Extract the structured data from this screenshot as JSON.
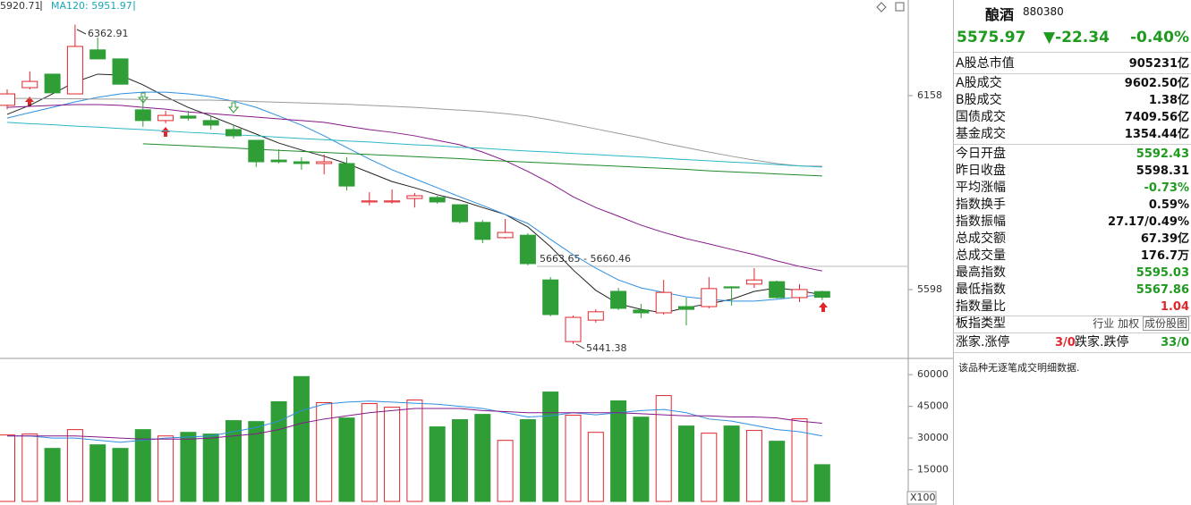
{
  "chart_data": [
    {
      "type": "candlestick",
      "legend_texts": [
        "5920.71",
        "MA120: 5951.97"
      ],
      "legend_colors": [
        "#333333",
        "#1aa6b4"
      ],
      "up_color": "#e0262d",
      "down_color": "#2f9e37",
      "ylim": [
        5402,
        6434
      ],
      "yticks": [
        5598,
        6158
      ],
      "open": [
        6130,
        6181,
        6220,
        6163,
        6290,
        6264,
        6117,
        6086,
        6099,
        6086,
        6060,
        6029,
        5972,
        5967,
        5962,
        5962,
        5851,
        5851,
        5861,
        5864,
        5843,
        5792,
        5748,
        5755,
        5626,
        5448,
        5510,
        5593,
        5539,
        5531,
        5549,
        5549,
        5606,
        5614,
        5621,
        5575,
        5592.43
      ],
      "high": [
        6176,
        6228,
        6220,
        6362.91,
        6326,
        6264,
        6158,
        6114,
        6114,
        6099,
        6073,
        6029,
        6003,
        5980,
        5988,
        5980,
        5879,
        5887,
        5877,
        5869,
        5843,
        5799,
        5802,
        5761,
        5634,
        5523,
        5541,
        5603,
        5557,
        5626,
        5575,
        5634,
        5608,
        5660,
        5624,
        5614,
        5595.03
      ],
      "low": [
        6119,
        6176,
        6166,
        6163,
        6264,
        6191,
        6068,
        6078,
        6086,
        6060,
        6034,
        5952,
        5962,
        5944,
        5931,
        5884,
        5841,
        5846,
        5835,
        5846,
        5789,
        5732,
        5745,
        5668,
        5521,
        5441.38,
        5503,
        5539,
        5516,
        5526,
        5495,
        5544,
        5552,
        5603,
        5572,
        5562,
        5567.86
      ],
      "close": [
        6163,
        6199,
        6166,
        6300,
        6264,
        6191,
        6086,
        6101,
        6093,
        6073,
        6042,
        5967,
        5967,
        5962,
        5967,
        5897,
        5854,
        5854,
        5869,
        5851,
        5794,
        5743,
        5763,
        5673,
        5526,
        5518,
        5534,
        5544,
        5531,
        5590,
        5541,
        5601,
        5603,
        5626,
        5575,
        5598.31,
        5575.97
      ],
      "series": [
        {
          "color": "#222222",
          "values": [
            6104,
            6130,
            6163,
            6197,
            6220,
            6217,
            6189,
            6155,
            6124,
            6099,
            6073,
            6047,
            6021,
            6001,
            5983,
            5962,
            5936,
            5910,
            5892,
            5872,
            5856,
            5835,
            5815,
            5779,
            5722,
            5655,
            5596,
            5557,
            5541,
            5531,
            5546,
            5557,
            5570,
            5593,
            5603,
            5595,
            5583
          ]
        },
        {
          "color": "#2f8fe0",
          "values": [
            6093,
            6109,
            6124,
            6140,
            6153,
            6163,
            6168,
            6168,
            6163,
            6155,
            6142,
            6124,
            6099,
            6073,
            6042,
            6008,
            5975,
            5944,
            5918,
            5892,
            5866,
            5841,
            5815,
            5789,
            5743,
            5699,
            5660,
            5626,
            5603,
            5590,
            5577,
            5570,
            5565,
            5565,
            5570,
            5577,
            5583
          ]
        },
        {
          "color": "#86198a",
          "values": [
            6124,
            6127,
            6130,
            6132,
            6132,
            6130,
            6124,
            6119,
            6111,
            6106,
            6101,
            6096,
            6091,
            6086,
            6081,
            6070,
            6060,
            6052,
            6042,
            6029,
            6016,
            5995,
            5970,
            5939,
            5905,
            5866,
            5835,
            5810,
            5784,
            5763,
            5745,
            5730,
            5714,
            5699,
            5681,
            5665,
            5652
          ]
        },
        {
          "color": "#1f8a2a",
          "values": [
            null,
            null,
            null,
            null,
            null,
            null,
            6019,
            6016,
            6013,
            6010,
            6007,
            6003,
            6000,
            5997,
            5994,
            5991,
            5988,
            5985,
            5982,
            5979,
            5976,
            5972,
            5969,
            5966,
            5963,
            5960,
            5957,
            5954,
            5951,
            5948,
            5945,
            5941,
            5938,
            5935,
            5932,
            5929,
            5926
          ]
        },
        {
          "color": "#9a9a9a",
          "values": [
            6150,
            6150,
            6149,
            6149,
            6148,
            6148,
            6147,
            6146,
            6145,
            6145,
            6143,
            6141,
            6139,
            6137,
            6135,
            6133,
            6130,
            6127,
            6124,
            6120,
            6116,
            6112,
            6106,
            6099,
            6088,
            6075,
            6062,
            6049,
            6036,
            6021,
            6008,
            5995,
            5983,
            5972,
            5962,
            5955,
            5954
          ]
        },
        {
          "color": "#2ab8c8",
          "values": [
            6081,
            6077,
            6074,
            6070,
            6067,
            6063,
            6060,
            6056,
            6052,
            6049,
            6045,
            6042,
            6038,
            6034,
            6031,
            6027,
            6024,
            6020,
            6016,
            6013,
            6009,
            6006,
            6002,
            5998,
            5995,
            5991,
            5988,
            5984,
            5981,
            5977,
            5973,
            5970,
            5966,
            5963,
            5959,
            5955,
            5952
          ]
        }
      ],
      "annotations": [
        "6362.91",
        "5663.65 - 5660.46",
        "5441.38"
      ]
    },
    {
      "type": "bar",
      "ylim": [
        0,
        66000
      ],
      "yticks": [
        15000,
        30000,
        45000,
        60000
      ],
      "unit_label": "X100",
      "values": [
        31450,
        31900,
        25100,
        34000,
        26800,
        25100,
        34000,
        31000,
        32700,
        31900,
        38250,
        37800,
        47200,
        59100,
        46750,
        39500,
        46300,
        44600,
        48000,
        35300,
        38700,
        41200,
        28900,
        38700,
        51800,
        40800,
        32700,
        47600,
        39900,
        50100,
        35700,
        32300,
        35700,
        33600,
        28500,
        39100,
        17400
      ],
      "series": [
        {
          "color": "#2f8fe0",
          "values": [
            31000,
            31000,
            30000,
            30000,
            29000,
            28000,
            29000,
            30000,
            30500,
            31000,
            33000,
            35000,
            38000,
            43000,
            46000,
            47000,
            47500,
            47000,
            46500,
            46000,
            45000,
            44000,
            42000,
            40000,
            40500,
            42000,
            41000,
            42000,
            43000,
            43500,
            42000,
            39000,
            38000,
            36000,
            34000,
            33000,
            31000
          ]
        },
        {
          "color": "#86198a",
          "values": [
            31000,
            31000,
            31000,
            31000,
            30500,
            30000,
            29500,
            29500,
            29500,
            30000,
            31000,
            32000,
            34000,
            37000,
            39000,
            40500,
            42000,
            43000,
            44000,
            44000,
            44000,
            43000,
            42500,
            42000,
            42000,
            42000,
            42000,
            42000,
            41500,
            41000,
            40500,
            40500,
            40000,
            40000,
            39500,
            38000,
            37000
          ]
        }
      ]
    }
  ],
  "panel": {
    "name": "酿酒",
    "code": "880380",
    "price": "5575.97",
    "change": "▼-22.34",
    "change_pct": "-0.40%",
    "price_color": "#1e9a1e",
    "rows": [
      {
        "label": "A股总市值",
        "value": "905231亿",
        "color": "#111111"
      },
      {
        "label": "A股成交",
        "value": "9602.50亿",
        "color": "#111111"
      },
      {
        "label": "B股成交",
        "value": "1.38亿",
        "color": "#111111"
      },
      {
        "label": "国债成交",
        "value": "7409.56亿",
        "color": "#111111"
      },
      {
        "label": "基金成交",
        "value": "1354.44亿",
        "color": "#111111"
      },
      {
        "label": "今日开盘",
        "value": "5592.43",
        "color": "#1e9a1e"
      },
      {
        "label": "昨日收盘",
        "value": "5598.31",
        "color": "#111111"
      },
      {
        "label": "平均涨幅",
        "value": "-0.73%",
        "color": "#1e9a1e"
      },
      {
        "label": "指数换手",
        "value": "0.59%",
        "color": "#111111"
      },
      {
        "label": "指数振幅",
        "value": "27.17/0.49%",
        "color": "#111111"
      },
      {
        "label": "总成交额",
        "value": "67.39亿",
        "color": "#111111"
      },
      {
        "label": "总成交量",
        "value": "176.7万",
        "color": "#111111"
      },
      {
        "label": "最高指数",
        "value": "5595.03",
        "color": "#1e9a1e"
      },
      {
        "label": "最低指数",
        "value": "5567.86",
        "color": "#1e9a1e"
      },
      {
        "label": "指数量比",
        "value": "1.04",
        "color": "#e0262d"
      }
    ],
    "board_type": {
      "label": "板指类型",
      "options": [
        "行业",
        "加权",
        "成份股图"
      ]
    },
    "breadth": {
      "up_label": "涨家.涨停",
      "up": "3/0",
      "up_color": "#e0262d",
      "down_label": "跌家.跌停",
      "down": "33/0",
      "down_color": "#1e9a1e"
    },
    "note": "该品种无逐笔成交明细数据."
  }
}
